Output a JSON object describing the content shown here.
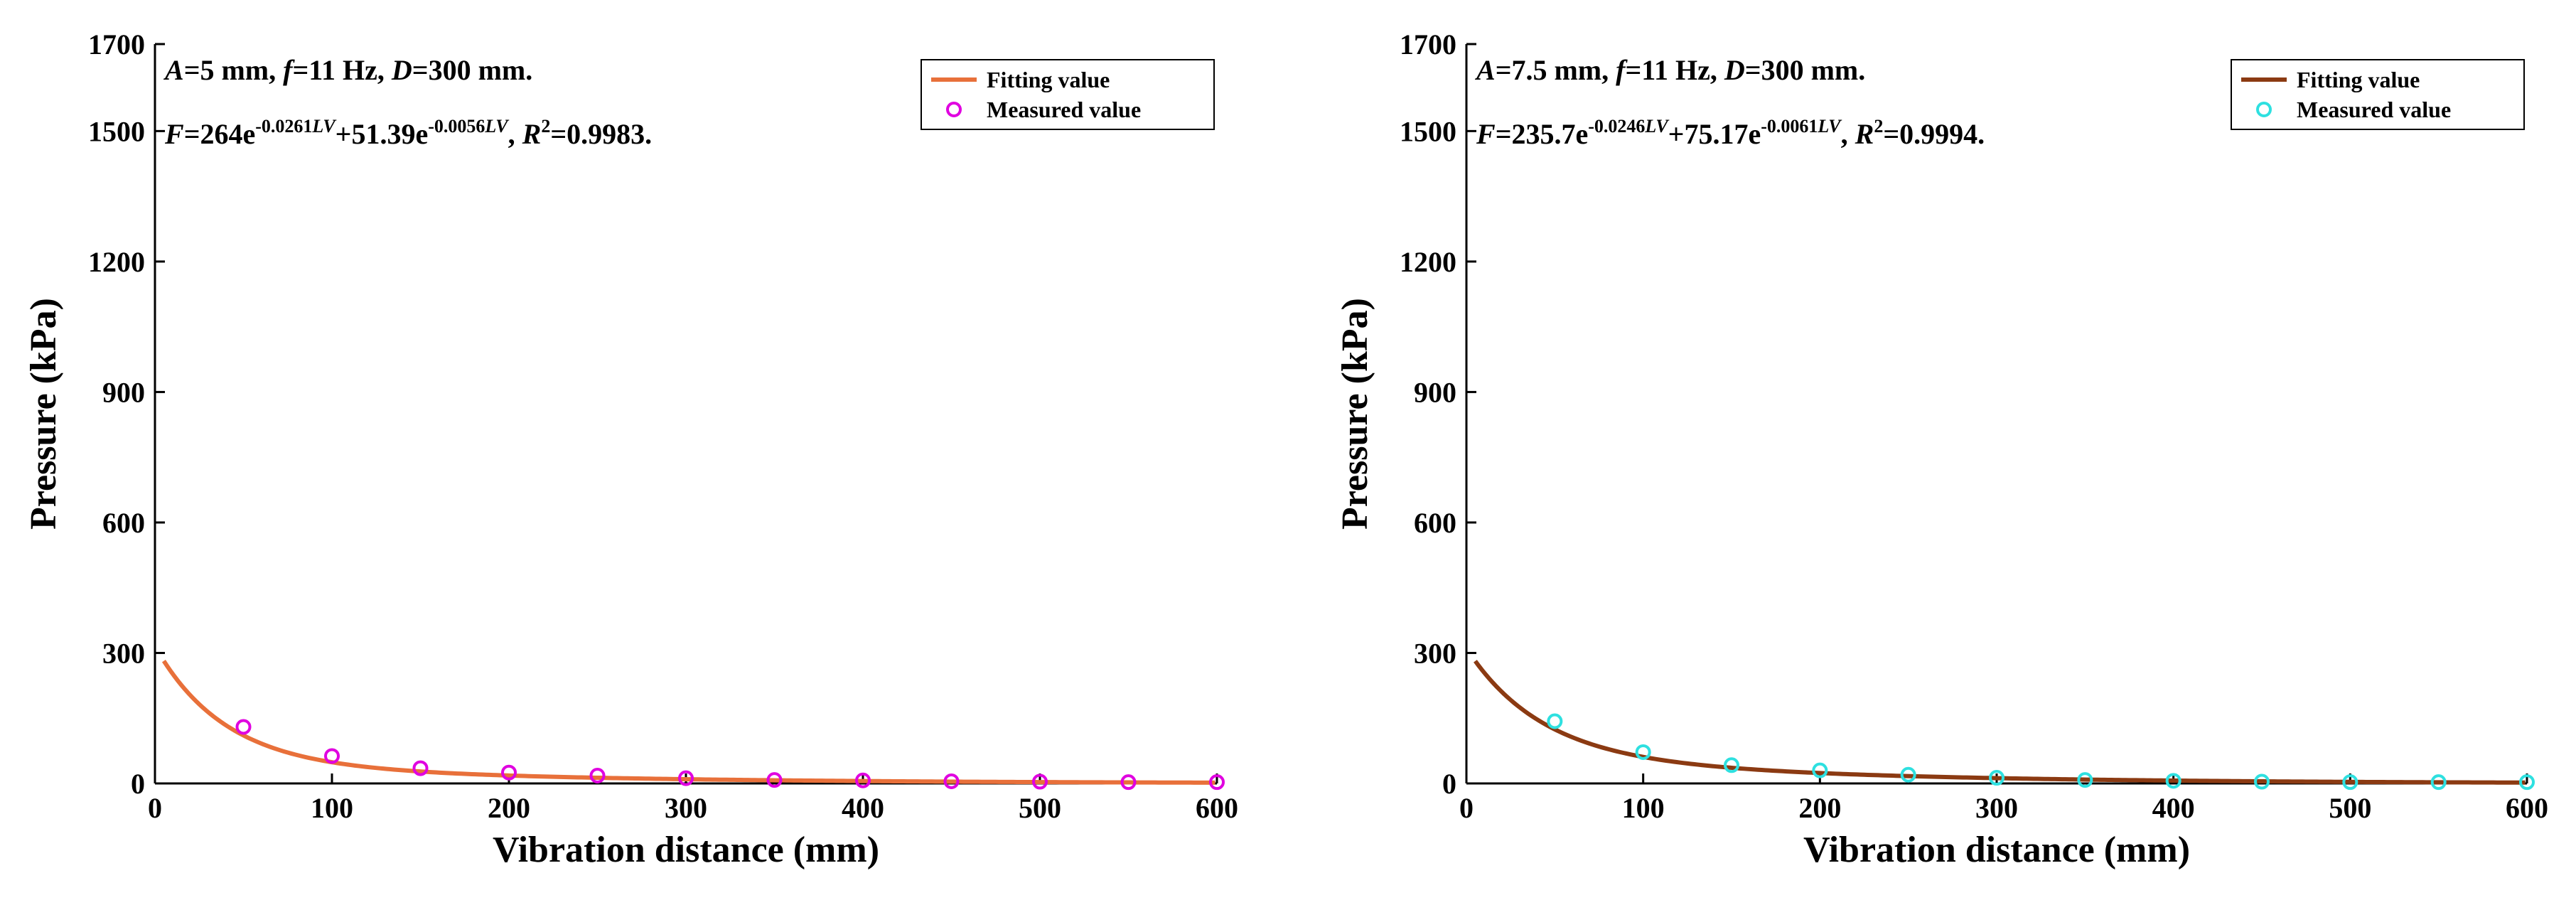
{
  "chart_data": [
    {
      "type": "line",
      "title": "",
      "xlabel": "Vibration distance (mm)",
      "ylabel": "Pressure (kPa)",
      "xlim": [
        0,
        600
      ],
      "ylim": [
        0,
        1700
      ],
      "xticks": [
        "0",
        "100",
        "200",
        "300",
        "400",
        "500",
        "600"
      ],
      "yticks": [
        "0",
        "300",
        "600",
        "900",
        "1200",
        "1500",
        "1700"
      ],
      "grid": false,
      "legend_position": "top-right",
      "annotation_line1": "A=5 mm, f=11 Hz, D=300 mm.",
      "annotation_line2": "F=264e-0.0261LV+51.39e-0.0056LV, R2=0.9983.",
      "fit": {
        "a1": 264,
        "b1": 0.0261,
        "a2": 51.39,
        "b2": 0.0056,
        "x_start": 5,
        "x_end": 600
      },
      "series": [
        {
          "name": "Fitting value",
          "kind": "line",
          "color": "#e8703a",
          "style": "solid"
        },
        {
          "name": "Measured value",
          "kind": "markers",
          "color": "#e000e0",
          "marker": "open-circle",
          "x": [
            50,
            100,
            150,
            200,
            250,
            300,
            350,
            400,
            450,
            500,
            550,
            600
          ],
          "y": [
            130,
            63,
            35,
            25,
            18,
            12,
            8,
            7,
            5,
            4,
            3,
            3
          ]
        }
      ]
    },
    {
      "type": "line",
      "title": "",
      "xlabel": "Vibration distance (mm)",
      "ylabel": "Pressure (kPa)",
      "xlim": [
        0,
        600
      ],
      "ylim": [
        0,
        1700
      ],
      "xticks": [
        "0",
        "100",
        "200",
        "300",
        "400",
        "500",
        "600"
      ],
      "yticks": [
        "0",
        "300",
        "600",
        "900",
        "1200",
        "1500",
        "1700"
      ],
      "grid": false,
      "legend_position": "top-right",
      "annotation_line1": "A=7.5 mm, f=11 Hz, D=300 mm.",
      "annotation_line2": "F=235.7e-0.0246LV+75.17e-0.0061LV, R2=0.9994.",
      "fit": {
        "a1": 235.7,
        "b1": 0.0246,
        "a2": 75.17,
        "b2": 0.0061,
        "x_start": 5,
        "x_end": 600
      },
      "series": [
        {
          "name": "Fitting value",
          "kind": "line",
          "color": "#8b3a12",
          "style": "solid"
        },
        {
          "name": "Measured value",
          "kind": "markers",
          "color": "#2ee0e0",
          "marker": "open-circle",
          "x": [
            50,
            100,
            150,
            200,
            250,
            300,
            350,
            400,
            450,
            500,
            550,
            600
          ],
          "y": [
            143,
            72,
            42,
            30,
            20,
            13,
            8,
            6,
            4,
            3,
            3,
            3
          ]
        }
      ]
    }
  ]
}
